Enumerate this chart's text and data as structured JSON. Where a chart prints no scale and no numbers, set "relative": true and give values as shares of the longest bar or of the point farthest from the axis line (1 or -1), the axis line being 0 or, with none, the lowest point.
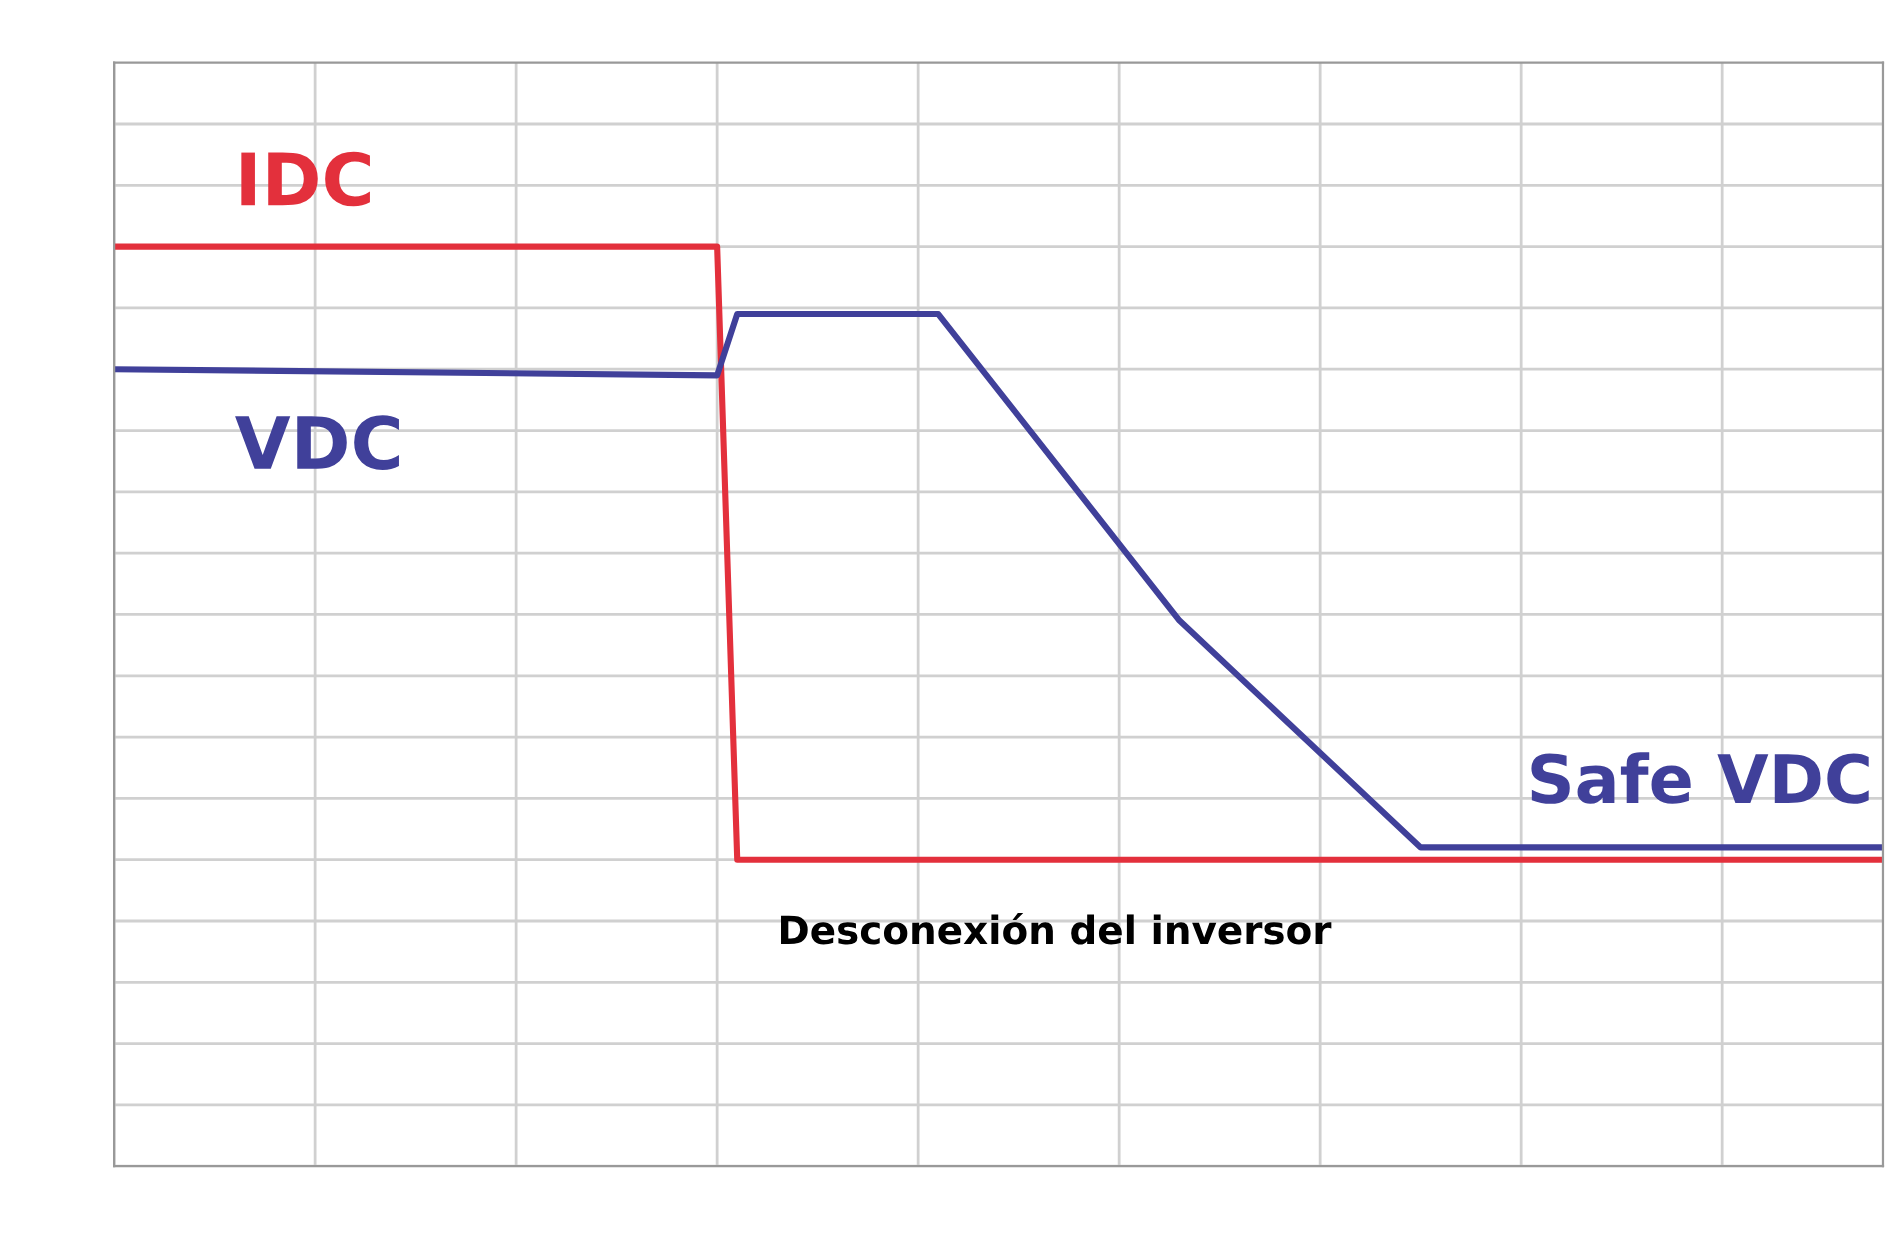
{
  "chart_data": {
    "type": "line",
    "relative": true,
    "grid": true,
    "tick_labels": false,
    "legend": false,
    "marker": "none",
    "line_style": "solid",
    "categories": [
      null,
      null,
      null,
      null,
      null,
      null,
      null,
      null,
      null,
      null,
      null,
      null,
      null,
      null,
      null,
      null,
      null,
      null,
      null,
      null,
      null,
      null,
      null,
      null,
      null,
      null,
      null,
      null,
      null,
      null,
      null,
      null,
      null,
      null,
      null,
      null,
      null,
      null,
      null,
      null,
      null,
      null,
      null,
      null,
      null,
      null,
      null,
      null,
      null,
      null,
      null,
      null,
      null,
      null,
      null,
      null,
      null,
      null,
      null,
      null,
      null,
      null,
      null,
      null,
      null,
      null,
      null,
      null,
      null,
      null,
      null,
      null,
      null,
      null,
      null,
      null,
      null,
      null,
      null,
      null,
      null,
      null,
      null,
      null,
      null,
      null,
      null,
      null,
      null
    ],
    "series": [
      {
        "name": "IDC",
        "color": "#e3303c",
        "values": [
          1,
          null,
          null,
          null,
          null,
          null,
          null,
          null,
          null,
          null,
          null,
          null,
          null,
          null,
          null,
          null,
          null,
          null,
          null,
          null,
          null,
          null,
          null,
          null,
          null,
          null,
          null,
          null,
          null,
          null,
          1,
          0,
          null,
          null,
          null,
          null,
          null,
          null,
          null,
          null,
          null,
          null,
          null,
          null,
          null,
          null,
          null,
          null,
          null,
          null,
          null,
          null,
          null,
          null,
          null,
          null,
          null,
          null,
          null,
          null,
          null,
          null,
          null,
          null,
          null,
          null,
          null,
          null,
          null,
          null,
          null,
          null,
          null,
          null,
          null,
          null,
          null,
          null,
          null,
          null,
          null,
          null,
          null,
          null,
          null,
          null,
          null,
          null,
          0
        ]
      },
      {
        "name": "VDC",
        "color": "#40409a",
        "values": [
          0.8,
          null,
          null,
          null,
          null,
          null,
          null,
          null,
          null,
          null,
          null,
          null,
          null,
          null,
          null,
          null,
          null,
          null,
          null,
          null,
          null,
          null,
          null,
          null,
          null,
          null,
          null,
          null,
          null,
          null,
          0.79,
          0.89,
          null,
          null,
          null,
          null,
          null,
          null,
          null,
          null,
          null,
          0.89,
          null,
          null,
          null,
          null,
          null,
          null,
          null,
          null,
          null,
          null,
          null,
          0.39,
          null,
          null,
          null,
          null,
          null,
          null,
          null,
          null,
          null,
          null,
          null,
          0.02,
          null,
          null,
          null,
          null,
          null,
          null,
          null,
          null,
          null,
          null,
          null,
          null,
          null,
          null,
          null,
          null,
          null,
          null,
          null,
          null,
          null,
          null,
          0.02
        ]
      }
    ],
    "annotations": [
      "Safe VDC",
      "Desconexión del inversor"
    ]
  }
}
